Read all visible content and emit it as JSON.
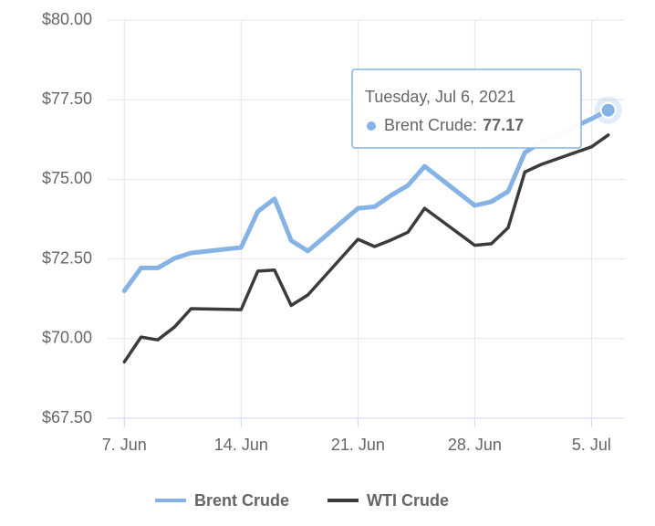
{
  "chart_data": {
    "type": "line",
    "x": [
      "2021-06-07",
      "2021-06-08",
      "2021-06-09",
      "2021-06-10",
      "2021-06-11",
      "2021-06-14",
      "2021-06-15",
      "2021-06-16",
      "2021-06-17",
      "2021-06-18",
      "2021-06-21",
      "2021-06-22",
      "2021-06-23",
      "2021-06-24",
      "2021-06-25",
      "2021-06-28",
      "2021-06-29",
      "2021-06-30",
      "2021-07-01",
      "2021-07-02",
      "2021-07-05",
      "2021-07-06"
    ],
    "series": [
      {
        "name": "Brent Crude",
        "color": "#86b3e6",
        "values": [
          71.5,
          72.22,
          72.22,
          72.52,
          72.69,
          72.86,
          73.99,
          74.39,
          73.08,
          72.75,
          74.09,
          74.14,
          74.5,
          74.81,
          75.41,
          74.18,
          74.3,
          74.62,
          75.84,
          76.17,
          76.9,
          77.17
        ]
      },
      {
        "name": "WTI Crude",
        "color": "#3b3b3b",
        "values": [
          69.27,
          70.05,
          69.96,
          70.36,
          70.94,
          70.91,
          72.12,
          72.15,
          71.04,
          71.37,
          73.12,
          72.89,
          73.1,
          73.34,
          74.09,
          72.93,
          72.98,
          73.48,
          75.23,
          75.47,
          76.02,
          76.39
        ]
      }
    ],
    "xlim": [
      "2021-06-06",
      "2021-07-07"
    ],
    "xticks": [
      {
        "value": "2021-06-07",
        "label": "7. Jun"
      },
      {
        "value": "2021-06-14",
        "label": "14. Jun"
      },
      {
        "value": "2021-06-21",
        "label": "21. Jun"
      },
      {
        "value": "2021-06-28",
        "label": "28. Jun"
      },
      {
        "value": "2021-07-05",
        "label": "5. Jul"
      }
    ],
    "ylim": [
      67.5,
      80
    ],
    "yticks": [
      {
        "value": 67.5,
        "label": "$67.50"
      },
      {
        "value": 70,
        "label": "$70.00"
      },
      {
        "value": 72.5,
        "label": "$72.50"
      },
      {
        "value": 75,
        "label": "$75.00"
      },
      {
        "value": 77.5,
        "label": "$77.50"
      },
      {
        "value": 80,
        "label": "$80.00"
      }
    ],
    "grid": true,
    "legend": "bottom",
    "tooltip": {
      "date": "Tuesday, Jul 6, 2021",
      "label": "Brent Crude:",
      "value": 77.17,
      "series": 0,
      "index": 21
    }
  }
}
